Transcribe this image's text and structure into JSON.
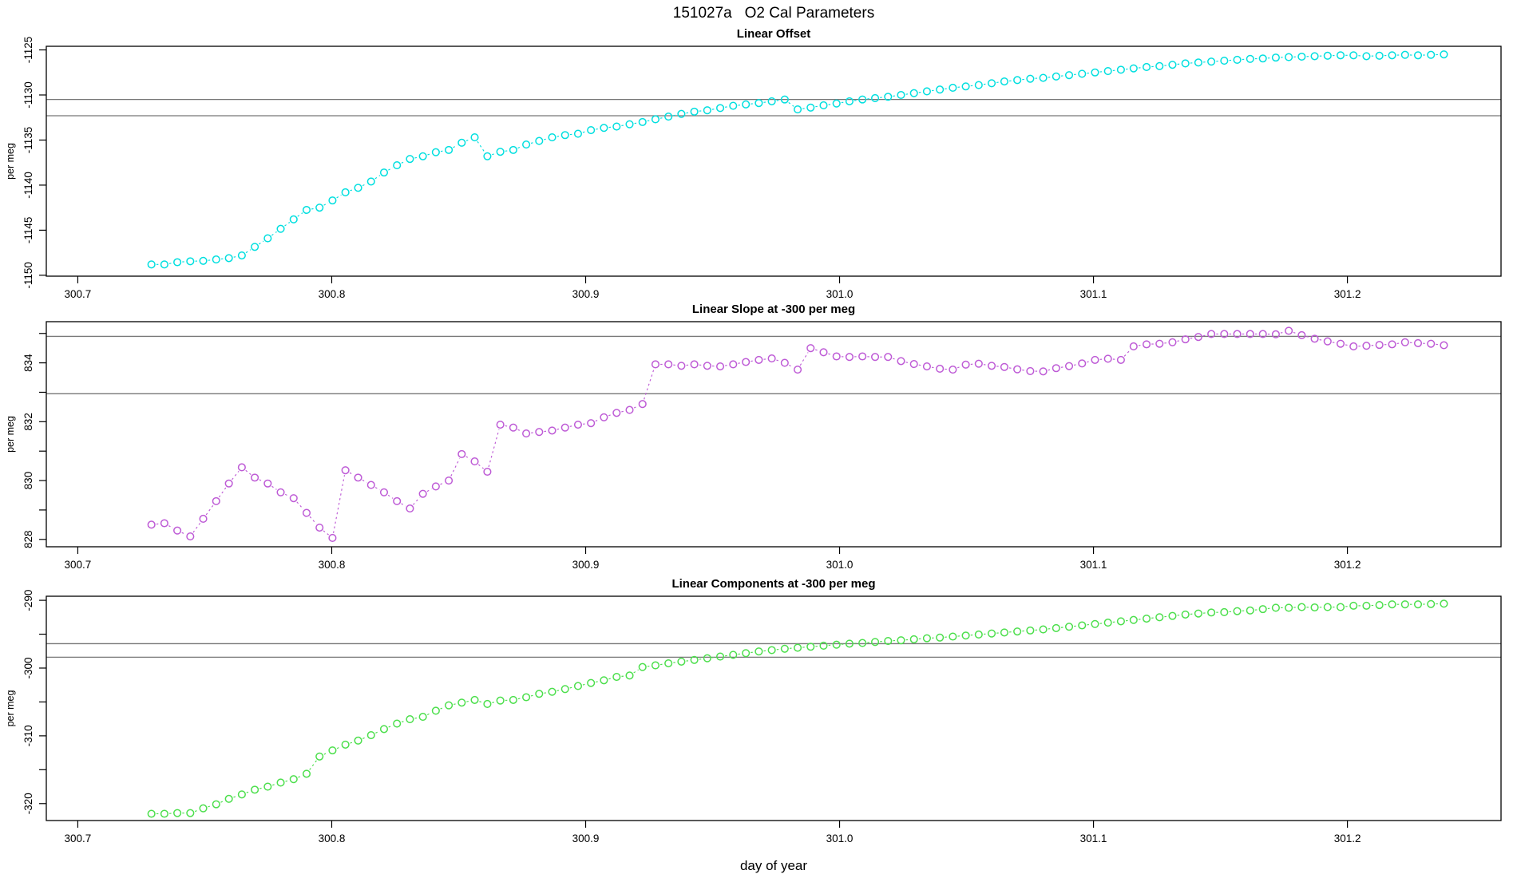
{
  "chart_data": {
    "type": "scatter-line",
    "title": "151027a   O2 Cal Parameters",
    "xlabel": "day of year",
    "x_tick_labels": [
      "300.7",
      "300.8",
      "300.9",
      "301.0",
      "301.1",
      "301.2"
    ],
    "x_ticks": [
      300.7,
      300.8,
      300.9,
      301.0,
      301.1,
      301.2
    ],
    "xlim": [
      300.6876,
      301.2605
    ],
    "grid": false,
    "legend": false,
    "x": [
      300.729,
      300.7341,
      300.7392,
      300.7443,
      300.7494,
      300.7545,
      300.7595,
      300.7646,
      300.7697,
      300.7748,
      300.7799,
      300.785,
      300.7901,
      300.7952,
      300.8003,
      300.8054,
      300.8104,
      300.8155,
      300.8206,
      300.8257,
      300.8308,
      300.8359,
      300.841,
      300.8461,
      300.8512,
      300.8563,
      300.8613,
      300.8664,
      300.8715,
      300.8766,
      300.8817,
      300.8868,
      300.8919,
      300.897,
      300.9021,
      300.9072,
      300.9122,
      300.9173,
      300.9224,
      300.9275,
      300.9326,
      300.9377,
      300.9428,
      300.9479,
      300.953,
      300.9581,
      300.9631,
      300.9682,
      300.9733,
      300.9784,
      300.9835,
      300.9886,
      300.9937,
      300.9988,
      301.0039,
      301.009,
      301.014,
      301.0191,
      301.0242,
      301.0293,
      301.0344,
      301.0395,
      301.0446,
      301.0497,
      301.0548,
      301.0599,
      301.0649,
      301.07,
      301.0751,
      301.0802,
      301.0853,
      301.0904,
      301.0955,
      301.1006,
      301.1057,
      301.1108,
      301.1158,
      301.1209,
      301.126,
      301.1311,
      301.1362,
      301.1413,
      301.1464,
      301.1515,
      301.1566,
      301.1617,
      301.1667,
      301.1718,
      301.1769,
      301.182,
      301.1871,
      301.1922,
      301.1973,
      301.2024,
      301.2075,
      301.2126,
      301.2176,
      301.2227,
      301.2278,
      301.2329,
      301.238
    ],
    "panels": [
      {
        "title": "Linear Offset",
        "ylabel": "per meg",
        "color": "#00dfdf",
        "ylim": [
          -1150.1,
          -1124.6
        ],
        "yticks": [
          -1150,
          -1145,
          -1140,
          -1135,
          -1130,
          -1125
        ],
        "ytick_labels": [
          "-1150",
          "-1145",
          "-1140",
          "-1135",
          "-1130",
          "-1125"
        ],
        "yticks_minor": [],
        "ref_lines": [
          -1130.5,
          -1132.3
        ],
        "values": [
          -1148.8,
          -1148.8,
          -1148.55,
          -1148.45,
          -1148.4,
          -1148.25,
          -1148.1,
          -1147.8,
          -1146.85,
          -1145.9,
          -1144.85,
          -1143.8,
          -1142.75,
          -1142.5,
          -1141.7,
          -1140.8,
          -1140.3,
          -1139.6,
          -1138.6,
          -1137.8,
          -1137.1,
          -1136.8,
          -1136.35,
          -1136.1,
          -1135.3,
          -1134.7,
          -1136.8,
          -1136.3,
          -1136.1,
          -1135.5,
          -1135.1,
          -1134.7,
          -1134.45,
          -1134.3,
          -1133.9,
          -1133.65,
          -1133.5,
          -1133.25,
          -1133.0,
          -1132.7,
          -1132.4,
          -1132.1,
          -1131.85,
          -1131.7,
          -1131.45,
          -1131.2,
          -1131.05,
          -1130.9,
          -1130.7,
          -1130.5,
          -1131.6,
          -1131.4,
          -1131.15,
          -1130.95,
          -1130.7,
          -1130.5,
          -1130.35,
          -1130.2,
          -1130.0,
          -1129.8,
          -1129.6,
          -1129.4,
          -1129.2,
          -1129.05,
          -1128.9,
          -1128.7,
          -1128.5,
          -1128.35,
          -1128.2,
          -1128.1,
          -1127.95,
          -1127.8,
          -1127.65,
          -1127.5,
          -1127.35,
          -1127.2,
          -1127.05,
          -1126.9,
          -1126.8,
          -1126.65,
          -1126.5,
          -1126.4,
          -1126.3,
          -1126.2,
          -1126.1,
          -1126.0,
          -1125.95,
          -1125.85,
          -1125.8,
          -1125.75,
          -1125.7,
          -1125.65,
          -1125.6,
          -1125.6,
          -1125.7,
          -1125.65,
          -1125.6,
          -1125.55,
          -1125.6,
          -1125.55,
          -1125.5
        ]
      },
      {
        "title": "Linear Slope at -300 per meg",
        "ylabel": "per meg",
        "color": "#be5bd6",
        "ylim": [
          827.75,
          835.4
        ],
        "yticks": [
          828,
          830,
          832,
          834
        ],
        "ytick_labels": [
          "828",
          "830",
          "832",
          "834"
        ],
        "yticks_minor": [
          829,
          831,
          833,
          835
        ],
        "ref_lines": [
          834.9,
          832.95
        ],
        "values": [
          828.5,
          828.55,
          828.3,
          828.1,
          828.7,
          829.3,
          829.9,
          830.45,
          830.1,
          829.9,
          829.6,
          829.4,
          828.9,
          828.4,
          828.05,
          830.35,
          830.1,
          829.85,
          829.6,
          829.3,
          829.05,
          829.55,
          829.8,
          830.0,
          830.9,
          830.65,
          830.3,
          831.9,
          831.8,
          831.6,
          831.65,
          831.7,
          831.8,
          831.9,
          831.95,
          832.15,
          832.3,
          832.4,
          832.6,
          833.95,
          833.95,
          833.9,
          833.95,
          833.9,
          833.88,
          833.95,
          834.03,
          834.1,
          834.15,
          834.0,
          833.77,
          834.5,
          834.36,
          834.22,
          834.2,
          834.22,
          834.2,
          834.2,
          834.06,
          833.96,
          833.88,
          833.8,
          833.77,
          833.94,
          833.97,
          833.9,
          833.86,
          833.78,
          833.72,
          833.71,
          833.82,
          833.89,
          833.98,
          834.1,
          834.14,
          834.1,
          834.56,
          834.63,
          834.65,
          834.7,
          834.8,
          834.88,
          834.98,
          834.98,
          834.98,
          834.98,
          834.98,
          834.97,
          835.09,
          834.94,
          834.82,
          834.73,
          834.65,
          834.56,
          834.58,
          834.61,
          834.63,
          834.7,
          834.67,
          834.65,
          834.6
        ]
      },
      {
        "title": "Linear Components at -300 per meg",
        "ylabel": "per meg",
        "color": "#4cdf4c",
        "ylim": [
          -322.5,
          -289.4
        ],
        "yticks": [
          -320,
          -310,
          -300,
          -290
        ],
        "ytick_labels": [
          "-320",
          "-310",
          "-300",
          "-290"
        ],
        "yticks_minor": [
          -315,
          -305,
          -295
        ],
        "ref_lines": [
          -296.4,
          -298.4
        ],
        "values": [
          -321.5,
          -321.5,
          -321.4,
          -321.4,
          -320.7,
          -320.1,
          -319.3,
          -318.65,
          -317.95,
          -317.5,
          -316.9,
          -316.4,
          -315.6,
          -313.05,
          -312.15,
          -311.3,
          -310.7,
          -309.9,
          -309.0,
          -308.2,
          -307.55,
          -307.2,
          -306.3,
          -305.5,
          -305.1,
          -304.7,
          -305.3,
          -304.8,
          -304.7,
          -304.3,
          -303.8,
          -303.5,
          -303.1,
          -302.65,
          -302.2,
          -301.8,
          -301.3,
          -301.1,
          -299.85,
          -299.6,
          -299.3,
          -299.05,
          -298.8,
          -298.55,
          -298.3,
          -298.05,
          -297.8,
          -297.55,
          -297.35,
          -297.15,
          -297.0,
          -296.85,
          -296.7,
          -296.55,
          -296.4,
          -296.3,
          -296.15,
          -296.0,
          -295.9,
          -295.75,
          -295.6,
          -295.5,
          -295.35,
          -295.2,
          -295.05,
          -294.9,
          -294.75,
          -294.6,
          -294.45,
          -294.3,
          -294.1,
          -293.9,
          -293.7,
          -293.5,
          -293.3,
          -293.1,
          -292.9,
          -292.7,
          -292.5,
          -292.3,
          -292.1,
          -291.95,
          -291.8,
          -291.75,
          -291.6,
          -291.5,
          -291.3,
          -291.1,
          -291.1,
          -291.0,
          -291.05,
          -291.0,
          -291.0,
          -290.8,
          -290.8,
          -290.7,
          -290.6,
          -290.6,
          -290.6,
          -290.55,
          -290.5
        ]
      }
    ],
    "ref_line_color": "#777777",
    "axis_color": "#000000"
  }
}
